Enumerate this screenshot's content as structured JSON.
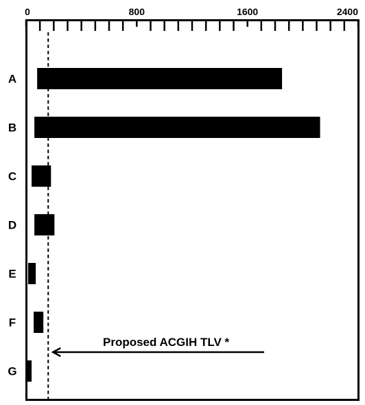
{
  "chart_data": {
    "type": "bar",
    "orientation": "horizontal",
    "categories": [
      "A",
      "B",
      "C",
      "D",
      "E",
      "F",
      "G"
    ],
    "series": [
      {
        "values": [
          {
            "start": 80,
            "end": 1850
          },
          {
            "start": 60,
            "end": 2125
          },
          {
            "start": 40,
            "end": 180
          },
          {
            "start": 60,
            "end": 205
          },
          {
            "start": 15,
            "end": 70
          },
          {
            "start": 55,
            "end": 125
          },
          {
            "start": 10,
            "end": 40
          }
        ]
      }
    ],
    "xlim": [
      0,
      2400
    ],
    "x_tick_labels": [
      "0",
      "800",
      "1600",
      "2400"
    ],
    "x_tick_values": [
      0,
      800,
      1600,
      2400
    ],
    "minor_tick_step": 100,
    "x_axis_position": "top",
    "grid": false,
    "legend": "none",
    "bar_color": "#000000",
    "reference_line": {
      "value": 160,
      "style": "dashed",
      "label": "Proposed ACGIH TLV *"
    },
    "title": "",
    "xlabel": "",
    "ylabel": ""
  }
}
